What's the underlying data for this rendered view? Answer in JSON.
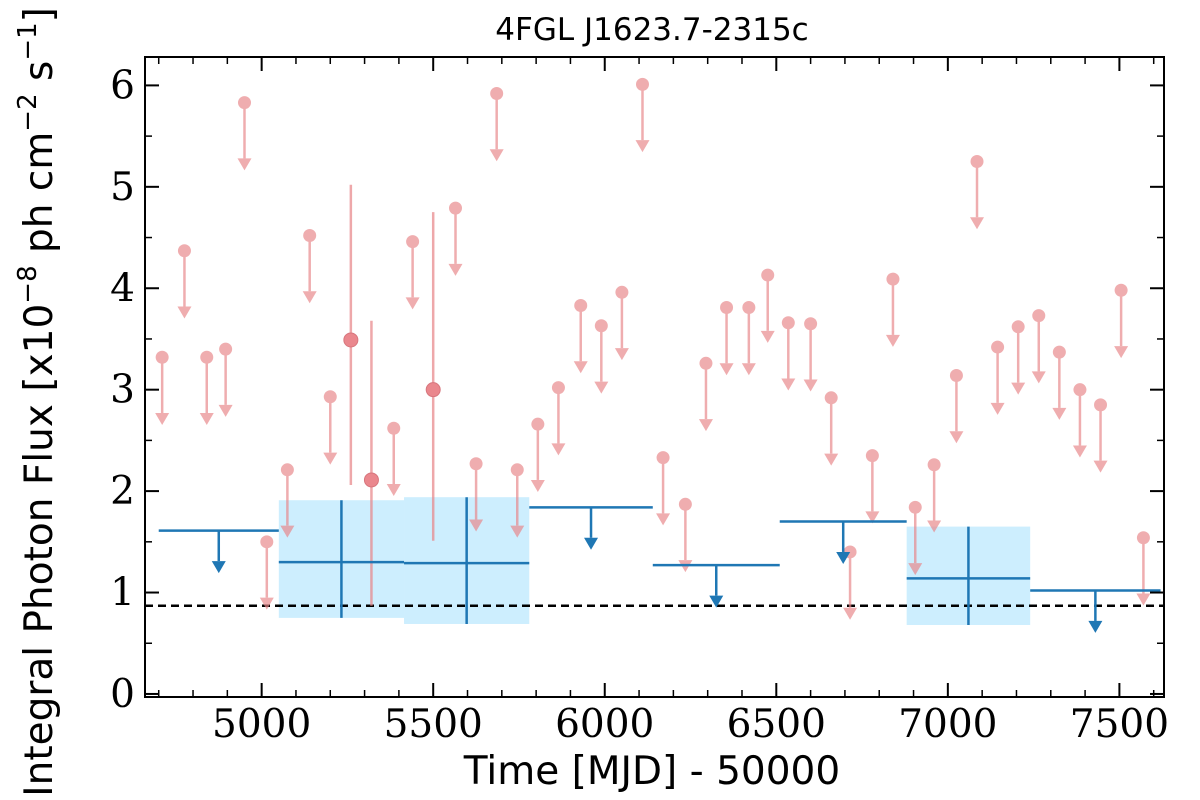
{
  "chart_data": {
    "type": "scatter",
    "title": "4FGL J1623.7-2315c",
    "xlabel": "Time [MJD] - 50000",
    "ylabel": "Integral Photon Flux [x10",
    "ylabel_exp": "−8",
    "ylabel_mid": " ph cm",
    "ylabel_exp2": "−2",
    "ylabel_end": " s",
    "ylabel_exp3": "−1",
    "ylabel_close": "]",
    "xlim": [
      4660,
      7630
    ],
    "ylim": [
      -0.03,
      6.28
    ],
    "xticks": [
      5000,
      5500,
      6000,
      6500,
      7000,
      7500
    ],
    "yticks": [
      0,
      1,
      2,
      3,
      4,
      5,
      6
    ],
    "grid": false,
    "colors": {
      "short_bin": "#e8878a",
      "long_bin": "#1f77b4",
      "long_bin_fill": "#cdeefe",
      "reference_line": "#000000"
    },
    "reference_line": {
      "y": 0.87,
      "style": "dashed"
    },
    "short_bin_upper_limits": [
      {
        "x": 4710,
        "y": 3.32
      },
      {
        "x": 4775,
        "y": 4.37
      },
      {
        "x": 4840,
        "y": 3.32
      },
      {
        "x": 4895,
        "y": 3.4
      },
      {
        "x": 4950,
        "y": 5.83
      },
      {
        "x": 5015,
        "y": 1.5
      },
      {
        "x": 5075,
        "y": 2.21
      },
      {
        "x": 5140,
        "y": 4.52
      },
      {
        "x": 5200,
        "y": 2.93
      },
      {
        "x": 5385,
        "y": 2.62
      },
      {
        "x": 5440,
        "y": 4.46
      },
      {
        "x": 5565,
        "y": 4.79
      },
      {
        "x": 5625,
        "y": 2.27
      },
      {
        "x": 5685,
        "y": 5.92
      },
      {
        "x": 5745,
        "y": 2.21
      },
      {
        "x": 5805,
        "y": 2.66
      },
      {
        "x": 5865,
        "y": 3.02
      },
      {
        "x": 5930,
        "y": 3.83
      },
      {
        "x": 5990,
        "y": 3.63
      },
      {
        "x": 6050,
        "y": 3.96
      },
      {
        "x": 6110,
        "y": 6.01
      },
      {
        "x": 6170,
        "y": 2.33
      },
      {
        "x": 6235,
        "y": 1.87
      },
      {
        "x": 6295,
        "y": 3.26
      },
      {
        "x": 6355,
        "y": 3.81
      },
      {
        "x": 6420,
        "y": 3.81
      },
      {
        "x": 6475,
        "y": 4.13
      },
      {
        "x": 6535,
        "y": 3.66
      },
      {
        "x": 6600,
        "y": 3.65
      },
      {
        "x": 6660,
        "y": 2.92
      },
      {
        "x": 6715,
        "y": 1.4
      },
      {
        "x": 6780,
        "y": 2.35
      },
      {
        "x": 6840,
        "y": 4.09
      },
      {
        "x": 6905,
        "y": 1.84
      },
      {
        "x": 6960,
        "y": 2.26
      },
      {
        "x": 7025,
        "y": 3.14
      },
      {
        "x": 7085,
        "y": 5.25
      },
      {
        "x": 7145,
        "y": 3.42
      },
      {
        "x": 7205,
        "y": 3.62
      },
      {
        "x": 7265,
        "y": 3.73
      },
      {
        "x": 7325,
        "y": 3.37
      },
      {
        "x": 7385,
        "y": 3.0
      },
      {
        "x": 7445,
        "y": 2.85
      },
      {
        "x": 7505,
        "y": 3.98
      },
      {
        "x": 7570,
        "y": 1.54
      }
    ],
    "short_bin_detections": [
      {
        "x": 5260,
        "y": 3.49,
        "y_low": 2.06,
        "y_high": 5.02
      },
      {
        "x": 5320,
        "y": 2.11,
        "y_low": 0.87,
        "y_high": 3.68
      },
      {
        "x": 5500,
        "y": 3.0,
        "y_low": 1.51,
        "y_high": 4.75
      }
    ],
    "long_bin_upper_limits": [
      {
        "x_start": 4700,
        "x_end": 5050,
        "y": 1.61
      },
      {
        "x_start": 5780,
        "x_end": 6140,
        "y": 1.84
      },
      {
        "x_start": 6140,
        "x_end": 6510,
        "y": 1.27
      },
      {
        "x_start": 6510,
        "x_end": 6880,
        "y": 1.7
      },
      {
        "x_start": 7240,
        "x_end": 7620,
        "y": 1.02
      }
    ],
    "long_bin_detections": [
      {
        "x_start": 5050,
        "x_end": 5415,
        "y": 1.3,
        "y_low": 0.75,
        "y_high": 1.91
      },
      {
        "x_start": 5415,
        "x_end": 5780,
        "y": 1.29,
        "y_low": 0.69,
        "y_high": 1.94
      },
      {
        "x_start": 6880,
        "x_end": 7240,
        "y": 1.14,
        "y_low": 0.68,
        "y_high": 1.65
      }
    ]
  }
}
